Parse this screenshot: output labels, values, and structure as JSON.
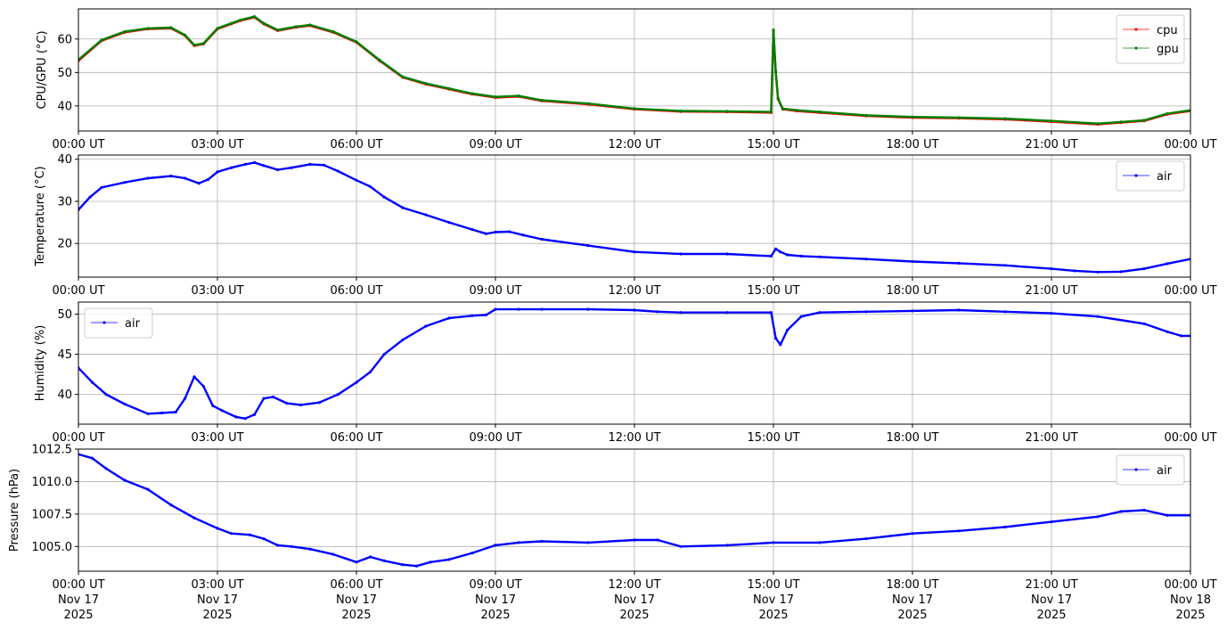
{
  "chart_data": [
    {
      "type": "line",
      "ylabel": "CPU/GPU (°C)",
      "ylim": [
        32.5,
        69
      ],
      "yticks": [
        40,
        50,
        60
      ],
      "x_ticks": [
        "00:00 UT",
        "03:00 UT",
        "06:00 UT",
        "09:00 UT",
        "12:00 UT",
        "15:00 UT",
        "18:00 UT",
        "21:00 UT",
        "00:00 UT"
      ],
      "x_tick_dates": [],
      "xlim_hours": [
        0,
        24
      ],
      "grid": true,
      "legend_position": "upper-right",
      "series": [
        {
          "name": "cpu",
          "color": "#ff0000",
          "x_hours": [
            0,
            0.5,
            1,
            1.5,
            2,
            2.3,
            2.5,
            2.7,
            3,
            3.3,
            3.5,
            3.8,
            4,
            4.3,
            4.7,
            5,
            5.5,
            6,
            6.5,
            7,
            7.5,
            8,
            8.5,
            9,
            9.5,
            10,
            11,
            12,
            13,
            14,
            14.95,
            15.0,
            15.05,
            15.1,
            15.2,
            15.5,
            16,
            17,
            18,
            19,
            20,
            21,
            22,
            22.5,
            23,
            23.5,
            24
          ],
          "y": [
            53.5,
            59.5,
            62,
            63,
            63.2,
            61,
            58,
            58.5,
            63,
            64.5,
            65.5,
            66.5,
            64.5,
            62.5,
            63.5,
            64,
            62,
            59,
            53.5,
            48.5,
            46.5,
            45,
            43.5,
            42.5,
            42.8,
            41.5,
            40.5,
            39,
            38.3,
            38.2,
            38,
            62.5,
            50,
            42,
            39,
            38.5,
            38,
            37,
            36.5,
            36.3,
            36,
            35.3,
            34.5,
            35,
            35.5,
            37.5,
            38.5
          ]
        },
        {
          "name": "gpu",
          "color": "#008000",
          "x_hours": [
            0,
            0.5,
            1,
            1.5,
            2,
            2.3,
            2.5,
            2.7,
            3,
            3.3,
            3.5,
            3.8,
            4,
            4.3,
            4.7,
            5,
            5.5,
            6,
            6.5,
            7,
            7.5,
            8,
            8.5,
            9,
            9.5,
            10,
            11,
            12,
            13,
            14,
            14.95,
            15.0,
            15.05,
            15.1,
            15.2,
            15.5,
            16,
            17,
            18,
            19,
            20,
            21,
            22,
            22.5,
            23,
            23.5,
            24
          ],
          "y": [
            53.8,
            59.7,
            62.2,
            63.2,
            63.4,
            61.2,
            58.2,
            58.7,
            63.2,
            64.7,
            65.7,
            66.7,
            64.7,
            62.7,
            63.7,
            64.2,
            62.2,
            59.2,
            53.7,
            48.7,
            46.7,
            45.2,
            43.7,
            42.7,
            43,
            41.7,
            40.7,
            39.2,
            38.5,
            38.4,
            38.2,
            62.7,
            50.2,
            42.2,
            39.2,
            38.7,
            38.2,
            37.2,
            36.7,
            36.5,
            36.2,
            35.5,
            34.7,
            35.2,
            35.7,
            37.7,
            38.7
          ]
        }
      ]
    },
    {
      "type": "line",
      "ylabel": "Temperature (°C)",
      "ylim": [
        12,
        41
      ],
      "yticks": [
        20,
        30,
        40
      ],
      "x_ticks": [
        "00:00 UT",
        "03:00 UT",
        "06:00 UT",
        "09:00 UT",
        "12:00 UT",
        "15:00 UT",
        "18:00 UT",
        "21:00 UT",
        "00:00 UT"
      ],
      "x_tick_dates": [],
      "xlim_hours": [
        0,
        24
      ],
      "grid": true,
      "legend_position": "upper-right",
      "series": [
        {
          "name": "air",
          "color": "#0000ff",
          "x_hours": [
            0,
            0.25,
            0.5,
            1,
            1.5,
            2,
            2.3,
            2.6,
            2.8,
            3,
            3.3,
            3.6,
            3.8,
            4.0,
            4.3,
            4.6,
            5,
            5.3,
            5.6,
            6,
            6.3,
            6.6,
            7,
            7.5,
            8,
            8.5,
            8.8,
            9,
            9.3,
            9.6,
            10,
            11,
            12,
            13,
            14,
            14.95,
            15.05,
            15.15,
            15.3,
            15.6,
            16,
            17,
            18,
            19,
            20,
            21,
            21.5,
            22,
            22.5,
            23,
            23.5,
            24
          ],
          "y": [
            28,
            31,
            33.3,
            34.5,
            35.5,
            36,
            35.5,
            34.3,
            35.2,
            37,
            38,
            38.8,
            39.2,
            38.5,
            37.5,
            38,
            38.8,
            38.6,
            37.2,
            35,
            33.5,
            31,
            28.5,
            26.8,
            25,
            23.3,
            22.3,
            22.7,
            22.8,
            22,
            21,
            19.5,
            18,
            17.5,
            17.5,
            17,
            18.7,
            18,
            17.3,
            17,
            16.8,
            16.3,
            15.7,
            15.3,
            14.8,
            14,
            13.5,
            13.2,
            13.3,
            14,
            15.2,
            16.3
          ]
        }
      ]
    },
    {
      "type": "line",
      "ylabel": "Humidity (%)",
      "ylim": [
        36.3,
        51.5
      ],
      "yticks": [
        40,
        45,
        50
      ],
      "x_ticks": [
        "00:00 UT",
        "03:00 UT",
        "06:00 UT",
        "09:00 UT",
        "12:00 UT",
        "15:00 UT",
        "18:00 UT",
        "21:00 UT",
        "00:00 UT"
      ],
      "x_tick_dates": [],
      "xlim_hours": [
        0,
        24
      ],
      "grid": true,
      "legend_position": "upper-left",
      "series": [
        {
          "name": "air",
          "color": "#0000ff",
          "x_hours": [
            0,
            0.3,
            0.6,
            1,
            1.5,
            1.8,
            2.1,
            2.3,
            2.5,
            2.7,
            2.9,
            3.1,
            3.4,
            3.6,
            3.8,
            4.0,
            4.2,
            4.5,
            4.8,
            5.2,
            5.6,
            6,
            6.3,
            6.6,
            7,
            7.5,
            8,
            8.5,
            8.8,
            9.0,
            9.5,
            10,
            11,
            12,
            12.5,
            13,
            14,
            14.95,
            15.05,
            15.15,
            15.3,
            15.6,
            16,
            17,
            18,
            19,
            20,
            21,
            22,
            23,
            23.5,
            23.8,
            24
          ],
          "y": [
            43.3,
            41.5,
            40,
            38.8,
            37.6,
            37.7,
            37.8,
            39.5,
            42.2,
            41,
            38.6,
            38,
            37.2,
            37,
            37.5,
            39.5,
            39.7,
            38.9,
            38.7,
            39,
            40,
            41.5,
            42.8,
            45,
            46.8,
            48.5,
            49.5,
            49.8,
            49.9,
            50.6,
            50.6,
            50.6,
            50.6,
            50.5,
            50.3,
            50.2,
            50.2,
            50.2,
            47,
            46.2,
            48,
            49.7,
            50.2,
            50.3,
            50.4,
            50.5,
            50.3,
            50.1,
            49.7,
            48.8,
            47.8,
            47.3,
            47.3
          ]
        }
      ]
    },
    {
      "type": "line",
      "ylabel": "Pressure (hPa)",
      "ylim": [
        1003.1,
        1012.5
      ],
      "yticks": [
        1005.0,
        1007.5,
        1010.0,
        1012.5
      ],
      "ytick_labels": [
        "1005.0",
        "1007.5",
        "1010.0",
        "1012.5"
      ],
      "x_ticks": [
        "00:00 UT",
        "03:00 UT",
        "06:00 UT",
        "09:00 UT",
        "12:00 UT",
        "15:00 UT",
        "18:00 UT",
        "21:00 UT",
        "00:00 UT"
      ],
      "x_tick_dates": [
        "Nov 17",
        "Nov 17",
        "Nov 17",
        "Nov 17",
        "Nov 17",
        "Nov 17",
        "Nov 17",
        "Nov 17",
        "Nov 18"
      ],
      "x_tick_years": [
        "2025",
        "2025",
        "2025",
        "2025",
        "2025",
        "2025",
        "2025",
        "2025",
        "2025"
      ],
      "xlim_hours": [
        0,
        24
      ],
      "grid": true,
      "legend_position": "upper-right",
      "series": [
        {
          "name": "air",
          "color": "#0000ff",
          "x_hours": [
            0,
            0.3,
            0.6,
            1,
            1.5,
            2,
            2.5,
            3,
            3.3,
            3.7,
            4,
            4.3,
            4.6,
            5,
            5.5,
            6,
            6.3,
            6.6,
            7,
            7.3,
            7.6,
            8,
            8.5,
            9,
            9.5,
            10,
            11,
            12,
            12.5,
            13,
            14,
            15,
            16,
            17,
            18,
            19,
            20,
            21,
            22,
            22.5,
            23,
            23.5,
            24
          ],
          "y": [
            1012.1,
            1011.8,
            1011,
            1010.1,
            1009.4,
            1008.2,
            1007.2,
            1006.4,
            1006,
            1005.9,
            1005.6,
            1005.1,
            1005,
            1004.8,
            1004.4,
            1003.8,
            1004.2,
            1003.9,
            1003.6,
            1003.5,
            1003.8,
            1004,
            1004.5,
            1005.1,
            1005.3,
            1005.4,
            1005.3,
            1005.5,
            1005.5,
            1005,
            1005.1,
            1005.3,
            1005.3,
            1005.6,
            1006,
            1006.2,
            1006.5,
            1006.9,
            1007.3,
            1007.7,
            1007.8,
            1007.4,
            1007.4
          ]
        }
      ]
    }
  ]
}
